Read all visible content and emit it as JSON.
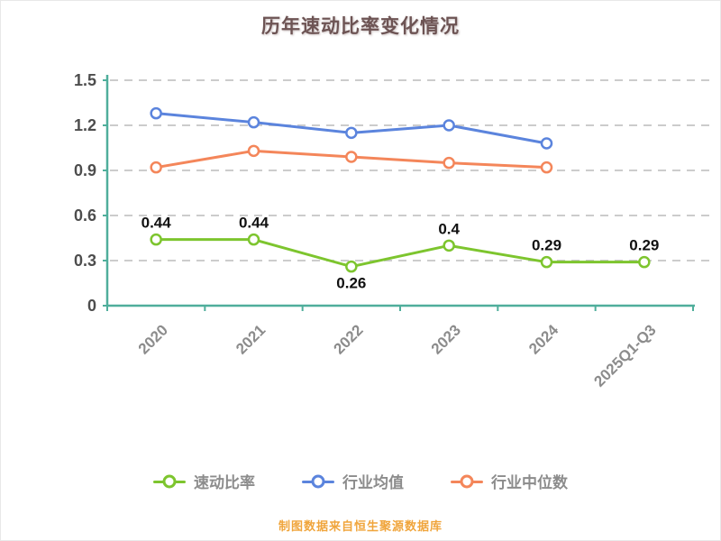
{
  "title": "历年速动比率变化情况",
  "caption": "制图数据来自恒生聚源数据库",
  "colors": {
    "axis": "#4fae9b",
    "grid": "#cccccc",
    "title": "#6d5454",
    "caption": "#f0a53c",
    "y_tick_label": "#4d4d4d",
    "x_tick_label": "#8c8c8c",
    "data_label": "#111111",
    "legend_label": "#8c8c8c"
  },
  "chart_data": {
    "type": "line",
    "title": "历年速动比率变化情况",
    "categories": [
      "2020",
      "2021",
      "2022",
      "2023",
      "2024",
      "2025Q1-Q3"
    ],
    "series": [
      {
        "id": "quick-ratio",
        "name": "速动比率",
        "color": "#7dc52e",
        "values": [
          0.44,
          0.44,
          0.26,
          0.4,
          0.29,
          0.29
        ],
        "data_labels": true,
        "label_positions": [
          "above",
          "above",
          "below",
          "above",
          "above",
          "above"
        ]
      },
      {
        "id": "industry-average",
        "name": "行业均值",
        "color": "#5b84dd",
        "values": [
          1.28,
          1.22,
          1.15,
          1.2,
          1.08,
          null
        ],
        "data_labels": false
      },
      {
        "id": "industry-median",
        "name": "行业中位数",
        "color": "#f4865a",
        "values": [
          0.92,
          1.03,
          0.99,
          0.95,
          0.92,
          null
        ],
        "data_labels": false
      }
    ],
    "ylim": [
      0,
      1.5
    ],
    "yticks": [
      0,
      0.3,
      0.6,
      0.9,
      1.2,
      1.5
    ],
    "grid": "dashed-horizontal",
    "legend_position": "bottom",
    "source_note": "制图数据来自恒生聚源数据库"
  }
}
